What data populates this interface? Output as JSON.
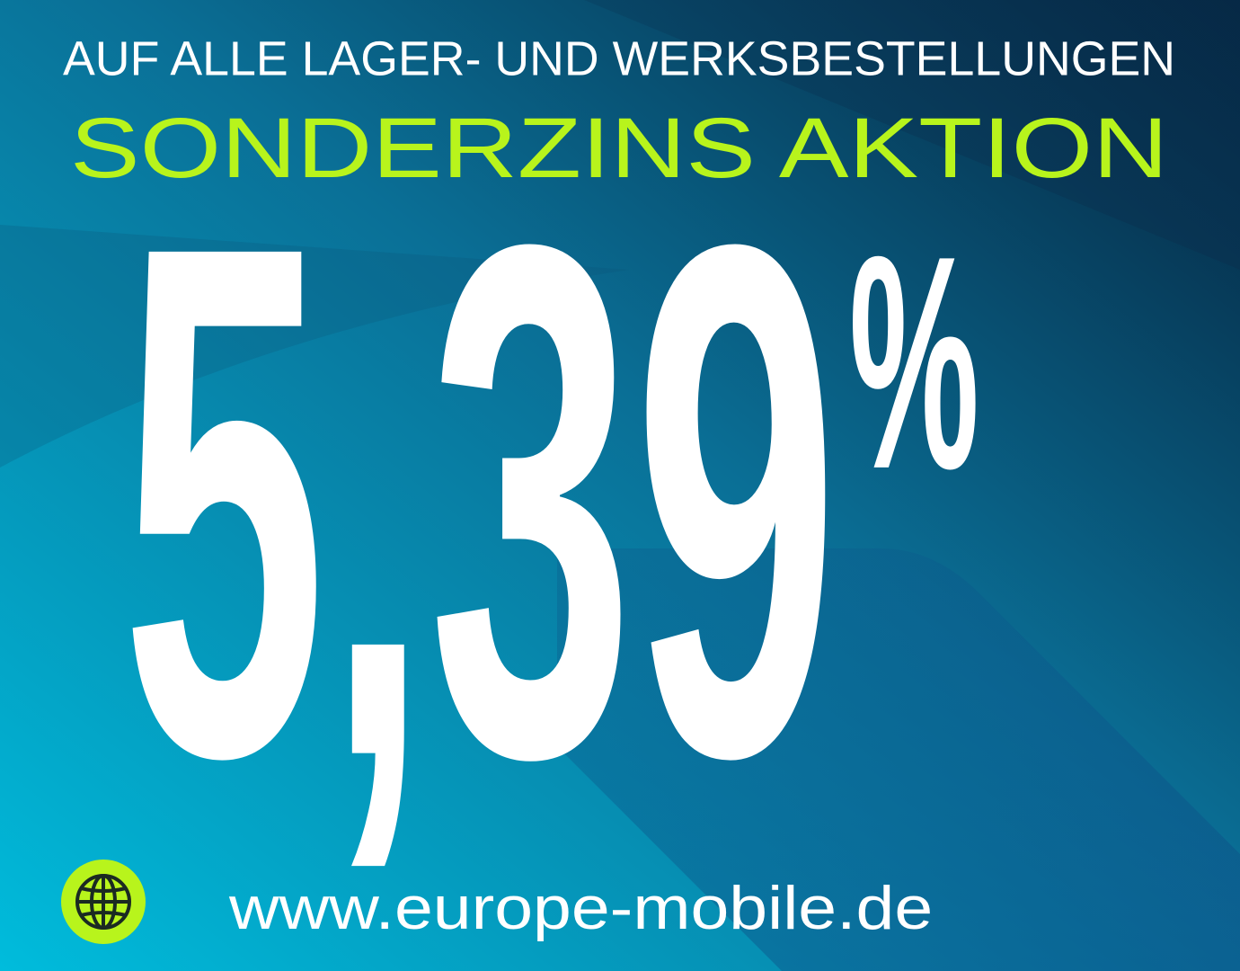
{
  "banner": {
    "top_line": "AUF ALLE LAGER- UND WERKSBESTELLUNGEN",
    "headline": "SONDERZINS AKTION",
    "rate_value": "5,39",
    "rate_unit": "%",
    "website_icon": "globe-icon",
    "website": "www.europe-mobile.de"
  },
  "colors": {
    "accent_green": "#b8f41c",
    "text_white": "#ffffff",
    "background_dark": "#062540",
    "background_light": "#00b6d6"
  }
}
